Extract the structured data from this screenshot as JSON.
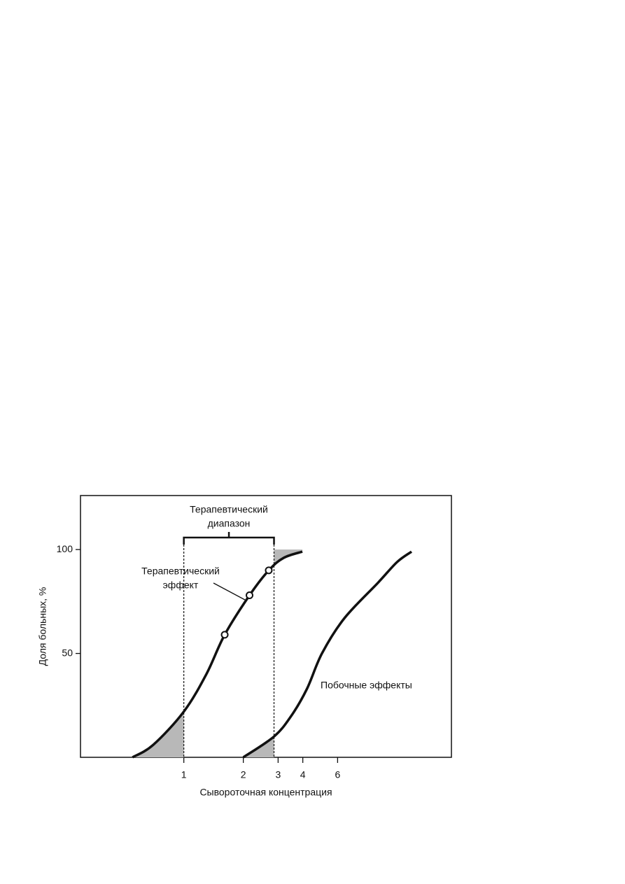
{
  "chart_data": {
    "type": "line",
    "xlabel": "Сывороточная концентрация",
    "ylabel": "Доля больных, %",
    "log_x": true,
    "xlim": [
      0.3,
      22.6
    ],
    "xticks": [
      1,
      2,
      3,
      4,
      6
    ],
    "ylim": [
      0,
      126
    ],
    "yticks": [
      50,
      100
    ],
    "color": "#111111",
    "shade_color": "#b8b8b8",
    "therapeutic_range": {
      "label": [
        "Терапевтический",
        "диапазон"
      ],
      "from": 1,
      "to": 2.86
    },
    "series": [
      {
        "label": [
          "Терапевтический",
          "эффект"
        ],
        "x": [
          0.55,
          0.7,
          1,
          1.3,
          1.61,
          2.15,
          2.69,
          3.2,
          3.98
        ],
        "values": [
          0,
          6,
          22,
          40,
          59,
          78,
          90,
          96,
          99
        ]
      },
      {
        "label": "Побочные эффекты",
        "x": [
          2.0,
          2.86,
          3.5,
          4.2,
          5.0,
          6.5,
          9.6,
          12,
          14.2
        ],
        "values": [
          0,
          10,
          20,
          33,
          50,
          67,
          84,
          94,
          99
        ]
      }
    ],
    "highlight_points": {
      "x": [
        1.61,
        2.15,
        2.69
      ],
      "y": [
        59,
        78,
        90
      ]
    }
  }
}
